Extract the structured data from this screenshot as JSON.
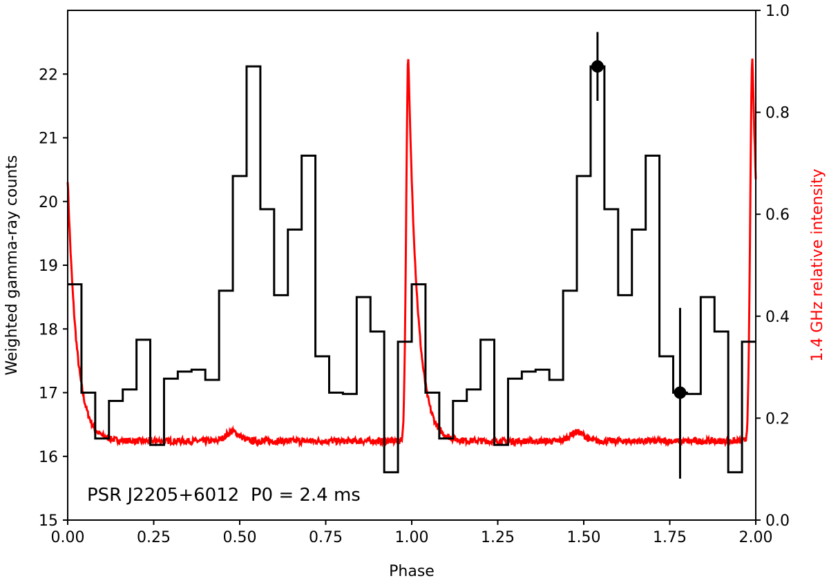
{
  "chart_data": {
    "type": "line",
    "title": "",
    "annotation": "PSR J2205+6012  P0 = 2.4 ms",
    "xlabel": "Phase",
    "ylabel_left": "Weighted gamma-ray counts",
    "ylabel_right": "1.4 GHz relative intensity",
    "xlim": [
      0,
      2
    ],
    "ylim_left": [
      15,
      23
    ],
    "ylim_right": [
      0,
      1
    ],
    "x_ticks": [
      0,
      0.25,
      0.5,
      0.75,
      1.0,
      1.25,
      1.5,
      1.75,
      2.0
    ],
    "x_tick_labels": [
      "0.00",
      "0.25",
      "0.50",
      "0.75",
      "1.00",
      "1.25",
      "1.50",
      "1.75",
      "2.00"
    ],
    "y_left_ticks": [
      15,
      16,
      17,
      18,
      19,
      20,
      21,
      22
    ],
    "y_left_tick_labels": [
      "15",
      "16",
      "17",
      "18",
      "19",
      "20",
      "21",
      "22"
    ],
    "y_right_ticks": [
      0,
      0.2,
      0.4,
      0.6,
      0.8,
      1.0
    ],
    "y_right_tick_labels": [
      "0.0",
      "0.2",
      "0.4",
      "0.6",
      "0.8",
      "1.0"
    ],
    "grid": false,
    "colors": {
      "gamma": "#000000",
      "radio": "#ff0000",
      "axes": "#000000"
    },
    "gamma_histogram": {
      "bin_width": 0.04,
      "counts": [
        18.7,
        17.0,
        16.28,
        16.87,
        17.05,
        17.83,
        16.18,
        17.22,
        17.33,
        17.36,
        17.2,
        18.6,
        20.4,
        22.12,
        19.88,
        18.53,
        19.56,
        20.72,
        17.57,
        17.0,
        16.98,
        18.5,
        17.96,
        15.75,
        17.8
      ]
    },
    "error_bars": [
      {
        "x": 1.54,
        "y": 22.12,
        "low": 21.58,
        "high": 22.66
      },
      {
        "x": 1.78,
        "y": 17.0,
        "low": 15.65,
        "high": 18.33
      }
    ],
    "radio_profile": {
      "baseline": 0.155,
      "peak": 0.91,
      "peak_phase": 0.99,
      "rise_width": 0.006,
      "decay_tau": 0.026,
      "bump_phase": 0.48,
      "bump_height": 0.018,
      "noise": 0.006
    }
  }
}
